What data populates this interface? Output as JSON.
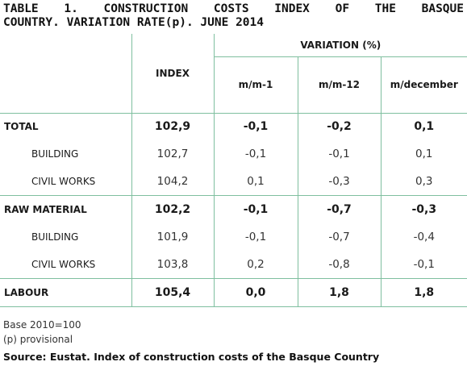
{
  "title": {
    "line1": "TABLE 1. CONSTRUCTION COSTS INDEX OF THE BASQUE",
    "line2": "COUNTRY. VARIATION RATE(p). JUNE 2014"
  },
  "table": {
    "index_header": "INDEX",
    "variation_header": "VARIATION (%)",
    "sub_headers": [
      "m/m-1",
      "m/m-12",
      "m/december"
    ],
    "rows": [
      {
        "label": "TOTAL",
        "index": "102,9",
        "mm1": "-0,1",
        "mm12": "-0,2",
        "mdec": "0,1"
      },
      {
        "label": "BUILDING",
        "index": "102,7",
        "mm1": "-0,1",
        "mm12": "-0,1",
        "mdec": "0,1"
      },
      {
        "label": "CIVIL WORKS",
        "index": "104,2",
        "mm1": "0,1",
        "mm12": "-0,3",
        "mdec": "0,3"
      },
      {
        "label": "RAW MATERIAL",
        "index": "102,2",
        "mm1": "-0,1",
        "mm12": "-0,7",
        "mdec": "-0,3"
      },
      {
        "label": "BUILDING",
        "index": "101,9",
        "mm1": "-0,1",
        "mm12": "-0,7",
        "mdec": "-0,4"
      },
      {
        "label": "CIVIL WORKS",
        "index": "103,8",
        "mm1": "0,2",
        "mm12": "-0,8",
        "mdec": "-0,1"
      },
      {
        "label": "LABOUR",
        "index": "105,4",
        "mm1": "0,0",
        "mm12": "1,8",
        "mdec": "1,8"
      }
    ]
  },
  "notes": {
    "base": "Base 2010=100",
    "provisional": "(p) provisional"
  },
  "source": "Source: Eustat. Index of construction costs of the Basque Country",
  "colors": {
    "rule": "#7fbf9f"
  }
}
